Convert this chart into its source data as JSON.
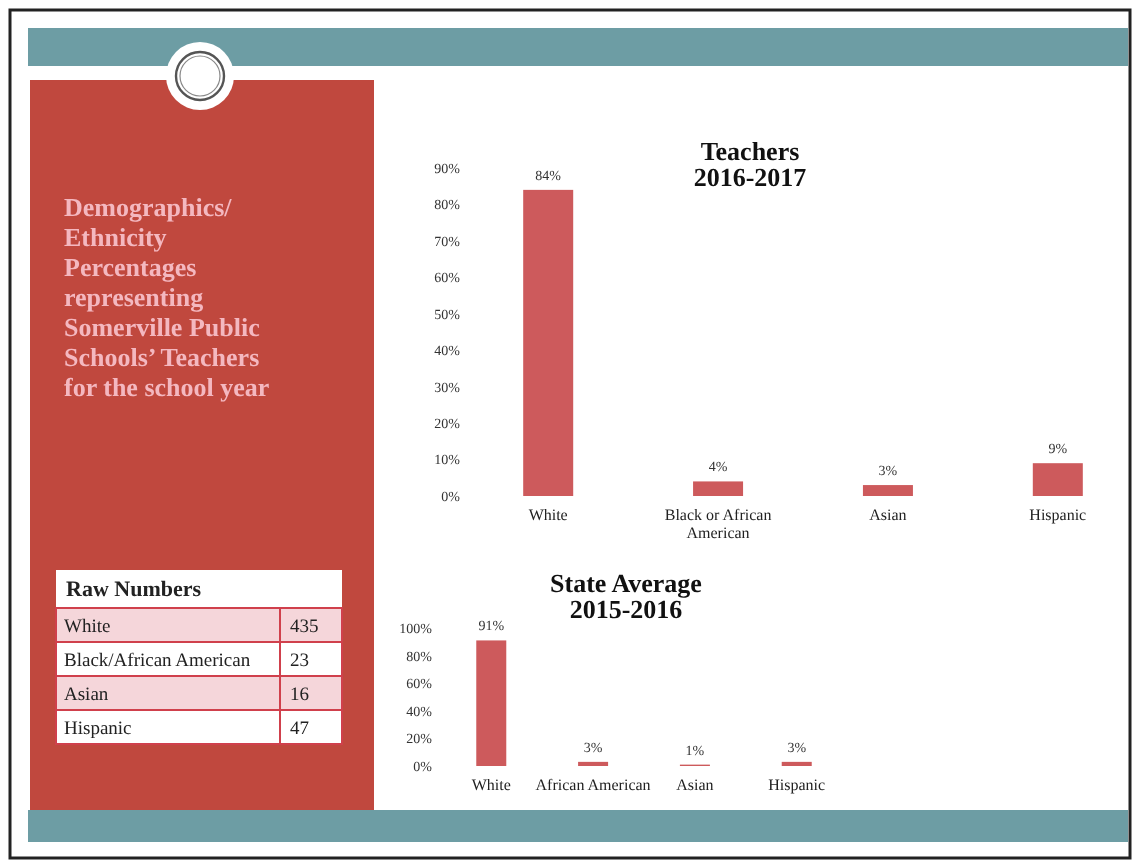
{
  "chart_data": [
    {
      "type": "other",
      "title": "Demographics/ Ethnicity Percentages representing Somerville Public Schools’ Teachers for the school year",
      "subtitle": "Raw Numbers",
      "categories": [
        "White",
        "Black/African American",
        "Asian",
        "Hispanic"
      ],
      "values": [
        435,
        23,
        16,
        47
      ],
      "data_labels": true
    },
    {
      "type": "bar",
      "title": "Teachers",
      "subtitle": "2016-2017",
      "categories": [
        "White",
        "Black or African American",
        "Asian",
        "Hispanic"
      ],
      "values": [
        84,
        4,
        3,
        9
      ],
      "value_labels": [
        "84%",
        "4%",
        "3%",
        "9%"
      ],
      "color": "#cd5a5c",
      "ylim": [
        0,
        90
      ],
      "yticks": [
        {
          "value": 0,
          "label": "0%"
        },
        {
          "value": 10,
          "label": "10%"
        },
        {
          "value": 20,
          "label": "20%"
        },
        {
          "value": 30,
          "label": "30%"
        },
        {
          "value": 40,
          "label": "40%"
        },
        {
          "value": 50,
          "label": "50%"
        },
        {
          "value": 60,
          "label": "60%"
        },
        {
          "value": 70,
          "label": "70%"
        },
        {
          "value": 80,
          "label": "80%"
        },
        {
          "value": 90,
          "label": "90%"
        }
      ]
    },
    {
      "type": "bar",
      "title": "State Average",
      "subtitle": "2015-2016",
      "categories": [
        "White",
        "African American",
        "Asian",
        "Hispanic"
      ],
      "values": [
        91,
        3,
        1,
        3
      ],
      "value_labels": [
        "91%",
        "3%",
        "1%",
        "3%"
      ],
      "color": "#cd5a5c",
      "ylim": [
        0,
        100
      ],
      "yticks": [
        {
          "value": 0,
          "label": "0%"
        },
        {
          "value": 20,
          "label": "20%"
        },
        {
          "value": 40,
          "label": "40%"
        },
        {
          "value": 60,
          "label": "60%"
        },
        {
          "value": 80,
          "label": "80%"
        },
        {
          "value": 100,
          "label": "100%"
        }
      ]
    }
  ]
}
